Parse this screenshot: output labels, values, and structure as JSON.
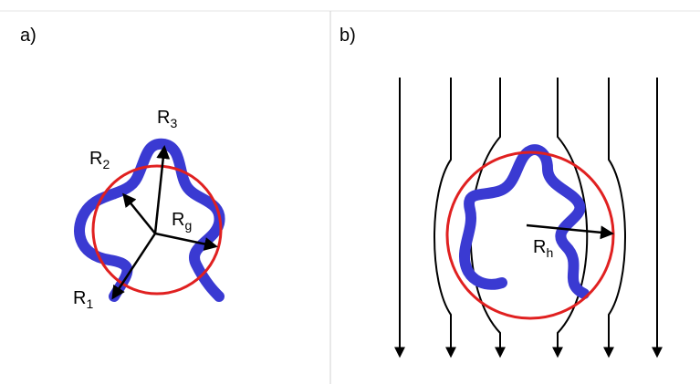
{
  "panels": [
    {
      "tag": "a)",
      "labels": [
        {
          "main": "R",
          "sub": "3"
        },
        {
          "main": "R",
          "sub": "2"
        },
        {
          "main": "R",
          "sub": "g"
        },
        {
          "main": "R",
          "sub": "1"
        }
      ]
    },
    {
      "tag": "b)",
      "labels": [
        {
          "main": "R",
          "sub": "h"
        }
      ]
    }
  ]
}
